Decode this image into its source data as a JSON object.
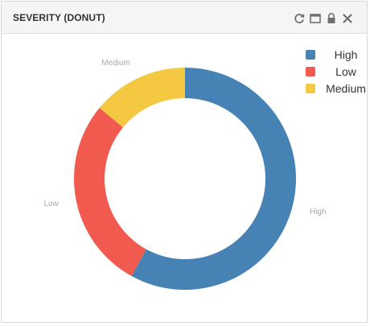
{
  "panel": {
    "title": "SEVERITY (DONUT)",
    "tools": [
      {
        "icon": "refresh-icon"
      },
      {
        "icon": "maximize-icon"
      },
      {
        "icon": "lock-icon"
      },
      {
        "icon": "close-icon"
      }
    ]
  },
  "chart_data": {
    "type": "pie",
    "variant": "donut",
    "categories": [
      "High",
      "Low",
      "Medium"
    ],
    "values": [
      58,
      28,
      14
    ],
    "colors": [
      "#4682b4",
      "#f05a4f",
      "#f5c842"
    ],
    "legend": [
      "High",
      "Low",
      "Medium"
    ],
    "legend_position": "top-right",
    "slice_labels": [
      "High",
      "Low",
      "Medium"
    ],
    "title": ""
  }
}
